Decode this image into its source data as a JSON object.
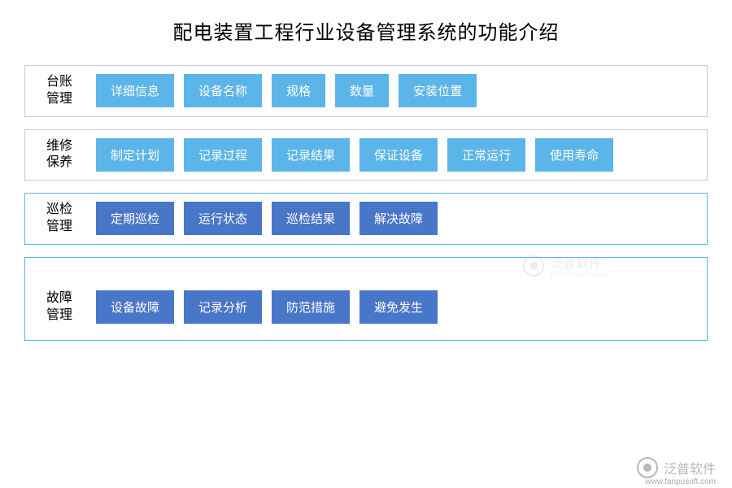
{
  "title": "配电装置工程行业设备管理系统的功能介绍",
  "sections": [
    {
      "label": "台账\n管理",
      "borderColor": "#cccccc",
      "itemColor": "#5bb5e8",
      "items": [
        "详细信息",
        "设备名称",
        "规格",
        "数量",
        "安装位置"
      ]
    },
    {
      "label": "维修\n保养",
      "borderColor": "#cccccc",
      "itemColor": "#5bb5e8",
      "items": [
        "制定计划",
        "记录过程",
        "记录结果",
        "保证设备",
        "正常运行",
        "使用寿命"
      ]
    },
    {
      "label": "巡检\n管理",
      "borderColor": "#5bb5e8",
      "itemColor": "#4876c8",
      "items": [
        "定期巡检",
        "运行状态",
        "巡检结果",
        "解决故障"
      ]
    },
    {
      "label": "故障\n管理",
      "borderColor": "#5bb5e8",
      "itemColor": "#4876c8",
      "items": [
        "设备故障",
        "记录分析",
        "防范措施",
        "避免发生"
      ]
    }
  ],
  "watermark": {
    "brand": "泛普软件",
    "url": "www.fanpusoft.com",
    "subtitle": "FANPU SOFTWARE"
  },
  "styling": {
    "title_fontsize": 24,
    "label_fontsize": 16,
    "item_fontsize": 15,
    "background_color": "#ffffff",
    "text_color": "#000000",
    "item_text_color": "#ffffff",
    "light_blue": "#5bb5e8",
    "dark_blue": "#4876c8",
    "gray_border": "#cccccc",
    "section_gap": 15,
    "item_gap": 12
  }
}
